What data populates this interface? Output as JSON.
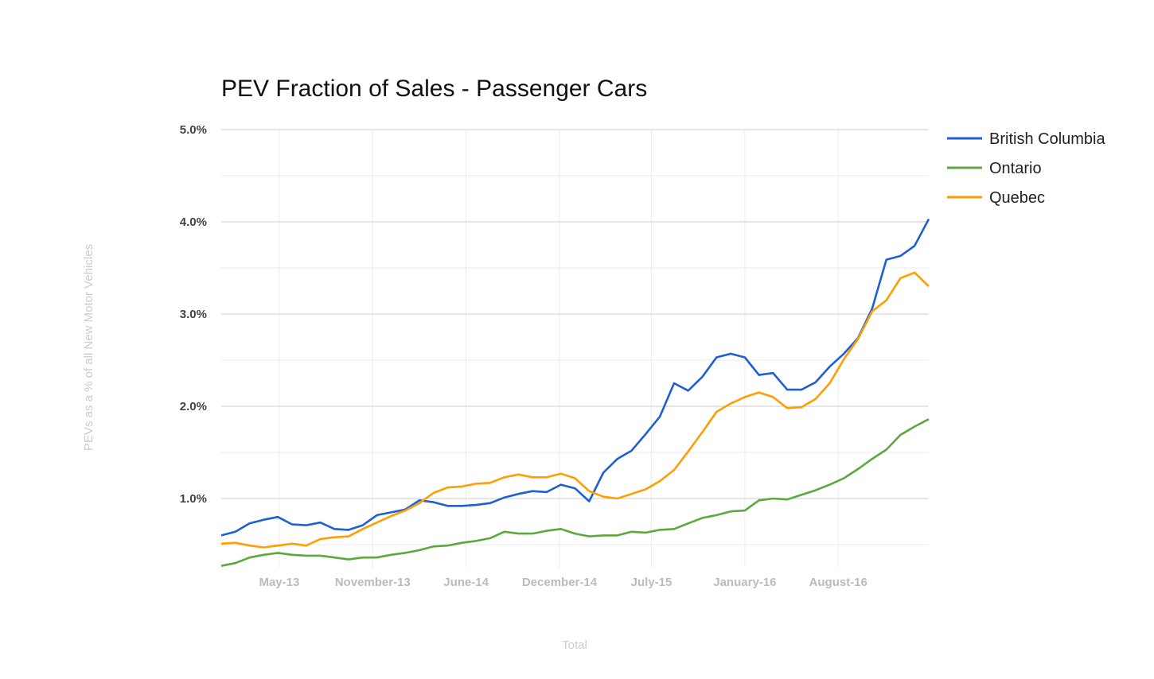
{
  "chart_data": {
    "type": "line",
    "title": "PEV Fraction of Sales - Passenger Cars",
    "xlabel": "Total",
    "ylabel": "PEVs as a % of all New Motor Vehicles",
    "ylim": [
      0.25,
      5.0
    ],
    "y_ticks": [
      {
        "value": 1.0,
        "label": "1.0%"
      },
      {
        "value": 2.0,
        "label": "2.0%"
      },
      {
        "value": 3.0,
        "label": "3.0%"
      },
      {
        "value": 4.0,
        "label": "4.0%"
      },
      {
        "value": 5.0,
        "label": "5.0%"
      }
    ],
    "y_minor_gridlines": [
      0.5,
      1.5,
      2.5,
      3.5,
      4.5
    ],
    "x_range": [
      0,
      50
    ],
    "x_ticks": [
      {
        "index": 4.1,
        "label": "May-13"
      },
      {
        "index": 10.7,
        "label": "November-13"
      },
      {
        "index": 17.3,
        "label": "June-14"
      },
      {
        "index": 23.9,
        "label": "December-14"
      },
      {
        "index": 30.4,
        "label": "July-15"
      },
      {
        "index": 37.0,
        "label": "January-16"
      },
      {
        "index": 43.6,
        "label": "August-16"
      }
    ],
    "grid": true,
    "legend_position": "right",
    "series": [
      {
        "name": "British Columbia",
        "color": "#1c5fd6",
        "values": [
          0.6,
          0.64,
          0.73,
          0.77,
          0.8,
          0.72,
          0.71,
          0.74,
          0.67,
          0.66,
          0.71,
          0.82,
          0.85,
          0.88,
          0.98,
          0.96,
          0.92,
          0.92,
          0.93,
          0.95,
          1.01,
          1.05,
          1.08,
          1.07,
          1.15,
          1.11,
          0.97,
          1.28,
          1.43,
          1.52,
          1.7,
          1.89,
          2.25,
          2.17,
          2.32,
          2.53,
          2.57,
          2.53,
          2.34,
          2.36,
          2.18,
          2.18,
          2.26,
          2.43,
          2.57,
          2.74,
          3.06,
          3.59,
          3.63,
          3.74,
          4.03
        ]
      },
      {
        "name": "Ontario",
        "color": "#5ca83f",
        "values": [
          0.27,
          0.3,
          0.36,
          0.39,
          0.41,
          0.39,
          0.38,
          0.38,
          0.36,
          0.34,
          0.36,
          0.36,
          0.39,
          0.41,
          0.44,
          0.48,
          0.49,
          0.52,
          0.54,
          0.57,
          0.64,
          0.62,
          0.62,
          0.65,
          0.67,
          0.62,
          0.59,
          0.6,
          0.6,
          0.64,
          0.63,
          0.66,
          0.67,
          0.73,
          0.79,
          0.82,
          0.86,
          0.87,
          0.98,
          1.0,
          0.99,
          1.04,
          1.09,
          1.15,
          1.22,
          1.32,
          1.43,
          1.53,
          1.69,
          1.78,
          1.86
        ]
      },
      {
        "name": "Quebec",
        "color": "#ff9e00",
        "values": [
          0.51,
          0.52,
          0.49,
          0.47,
          0.49,
          0.51,
          0.49,
          0.56,
          0.58,
          0.59,
          0.67,
          0.74,
          0.81,
          0.87,
          0.95,
          1.06,
          1.12,
          1.13,
          1.16,
          1.17,
          1.23,
          1.26,
          1.23,
          1.23,
          1.27,
          1.22,
          1.08,
          1.02,
          1.0,
          1.05,
          1.1,
          1.19,
          1.31,
          1.51,
          1.72,
          1.94,
          2.03,
          2.1,
          2.15,
          2.1,
          1.98,
          1.99,
          2.08,
          2.25,
          2.51,
          2.73,
          3.03,
          3.15,
          3.39,
          3.45,
          3.3
        ]
      }
    ]
  }
}
